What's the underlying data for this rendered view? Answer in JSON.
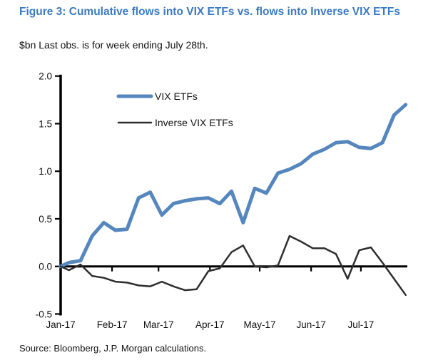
{
  "figure": {
    "title": "Figure 3: Cumulative flows into VIX ETFs vs. flows into Inverse VIX ETFs",
    "subtitle": "$bn Last obs. is for week ending July 28th.",
    "source": "Source: Bloomberg, J.P. Morgan calculations.",
    "title_color": "#3b7ac0"
  },
  "chart_data": {
    "type": "line",
    "title": "Cumulative flows into VIX ETFs vs. flows into Inverse VIX ETFs",
    "ylabel": "$bn",
    "ylim": [
      -0.5,
      2.0
    ],
    "y_ticks": [
      2.0,
      1.5,
      1.0,
      0.5,
      0.0,
      -0.5
    ],
    "grid": false,
    "legend_position": "top-left-inside",
    "x_axis_total_days": 212,
    "x_tick_days": [
      0,
      31,
      59,
      90,
      120,
      151,
      181
    ],
    "x_tick_labels": [
      "Jan-17",
      "Feb-17",
      "Mar-17",
      "Apr-17",
      "May-17",
      "Jun-17",
      "Jul-17"
    ],
    "x_days": [
      0,
      5,
      12,
      19,
      26,
      33,
      40,
      47,
      54,
      61,
      68,
      75,
      82,
      89,
      96,
      103,
      110,
      117,
      124,
      131,
      138,
      145,
      152,
      159,
      166,
      173,
      180,
      187,
      194,
      201,
      208
    ],
    "series": [
      {
        "name": "VIX ETFs",
        "color": "#5587be",
        "stroke_width": 5,
        "values": [
          0.0,
          0.04,
          0.06,
          0.32,
          0.46,
          0.38,
          0.39,
          0.72,
          0.78,
          0.54,
          0.66,
          0.69,
          0.71,
          0.72,
          0.66,
          0.79,
          0.46,
          0.82,
          0.77,
          0.98,
          1.02,
          1.08,
          1.18,
          1.23,
          1.3,
          1.31,
          1.25,
          1.24,
          1.3,
          1.59,
          1.7
        ]
      },
      {
        "name": "Inverse VIX ETFs",
        "color": "#2e2e2e",
        "stroke_width": 2.5,
        "values": [
          0.0,
          -0.04,
          0.02,
          -0.1,
          -0.12,
          -0.16,
          -0.17,
          -0.2,
          -0.21,
          -0.16,
          -0.21,
          -0.25,
          -0.24,
          -0.05,
          -0.02,
          0.15,
          0.22,
          0.0,
          -0.01,
          0.01,
          0.32,
          0.26,
          0.19,
          0.19,
          0.13,
          -0.13,
          0.17,
          0.2,
          0.04,
          -0.13,
          -0.3
        ]
      }
    ]
  }
}
